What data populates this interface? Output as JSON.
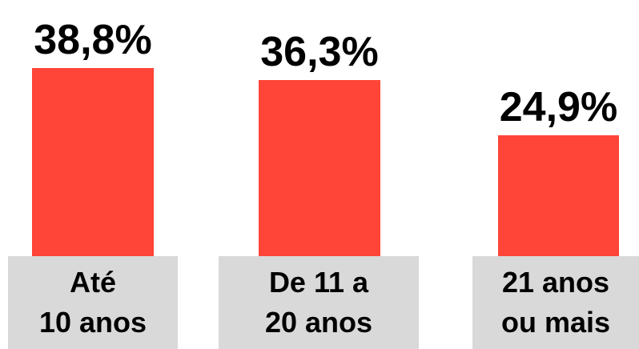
{
  "chart_data": {
    "type": "bar",
    "categories": [
      "Até\n10 anos",
      "De 11 a\n20 anos",
      "21 anos\nou mais"
    ],
    "values": [
      38.8,
      36.3,
      24.9
    ],
    "value_labels": [
      "38,8%",
      "36,3%",
      "24,9%"
    ],
    "color": "#ff4438"
  }
}
